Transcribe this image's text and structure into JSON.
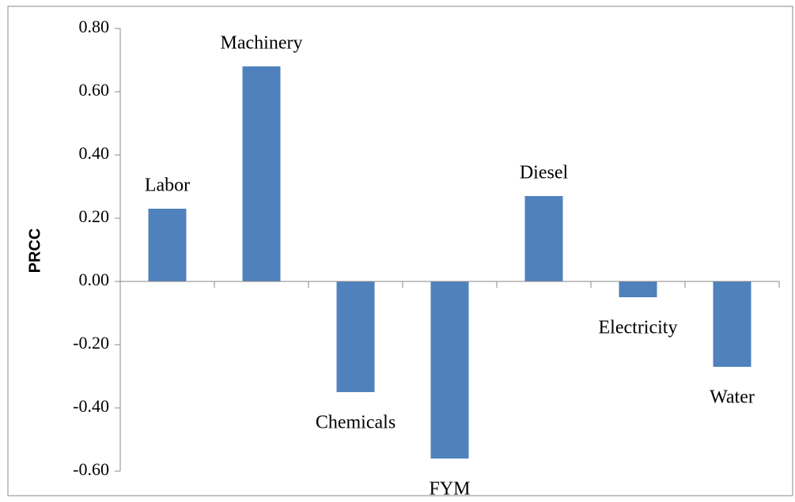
{
  "chart_data": {
    "type": "bar",
    "y_label": "PRCC",
    "categories": [
      "Labor",
      "Machinery",
      "Chemicals",
      "FYM",
      "Diesel",
      "Electricity",
      "Water"
    ],
    "values": [
      0.23,
      0.68,
      -0.35,
      -0.56,
      0.27,
      -0.05,
      -0.27
    ],
    "color": "#4f81bd",
    "ylim": [
      -0.6,
      0.8
    ],
    "yticks": [
      {
        "value": -0.6,
        "label": "-0.60"
      },
      {
        "value": -0.4,
        "label": "-0.40"
      },
      {
        "value": -0.2,
        "label": "-0.20"
      },
      {
        "value": 0,
        "label": "0.00"
      },
      {
        "value": 0.2,
        "label": "0.20"
      },
      {
        "value": 0.4,
        "label": "0.40"
      },
      {
        "value": 0.6,
        "label": "0.60"
      },
      {
        "value": 0.8,
        "label": "0.80"
      }
    ],
    "grid": false
  }
}
